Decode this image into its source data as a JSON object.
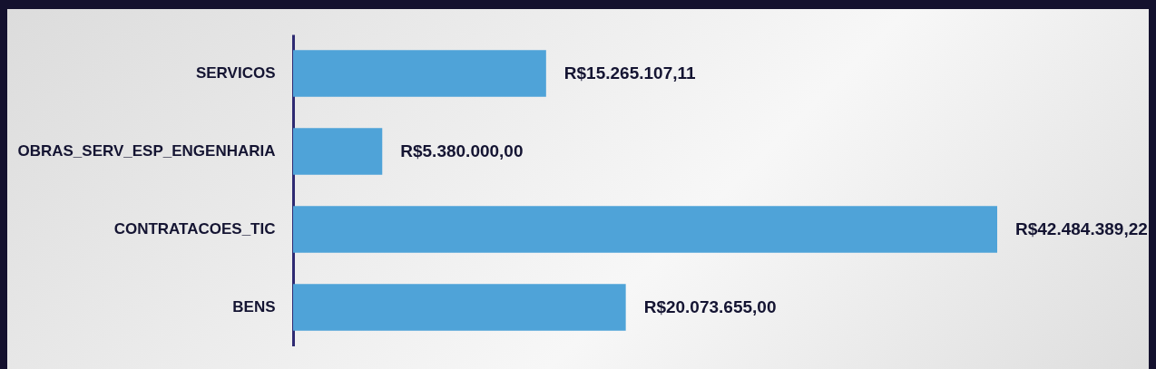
{
  "chart_data": {
    "type": "bar",
    "orientation": "horizontal",
    "categories": [
      "SERVICOS",
      "OBRAS_SERV_ESP_ENGENHARIA",
      "CONTRATACOES_TIC",
      "BENS"
    ],
    "values": [
      15265107.11,
      5380000.0,
      42484389.22,
      20073655.0
    ],
    "color": "#4fa3d8",
    "value_labels": [
      "R$15.265.107,11",
      "R$5.380.000,00",
      "R$42.484.389,22",
      "R$20.073.655,00"
    ]
  }
}
